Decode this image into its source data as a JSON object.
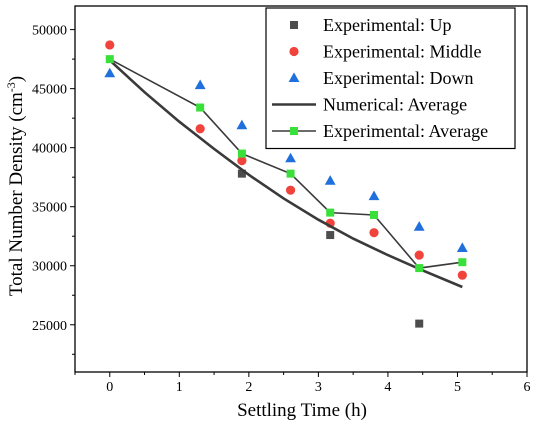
{
  "chart_data": {
    "type": "scatter",
    "xlabel": "Settling Time (h)",
    "ylabel": "Total Number Density (cm",
    "ylabel_sup": "-3",
    "ylabel_end": ")",
    "xlim": [
      -0.5,
      6
    ],
    "ylim": [
      21000,
      52000
    ],
    "xticks": [
      0,
      1,
      2,
      3,
      4,
      5,
      6
    ],
    "yticks": [
      25000,
      30000,
      35000,
      40000,
      45000,
      50000
    ],
    "legend_position": "top-right",
    "series": [
      {
        "name": "Experimental: Up",
        "kind": "scatter",
        "marker": "square",
        "color": "#4d4d4d",
        "points": [
          {
            "x": 1.9,
            "y": 37800
          },
          {
            "x": 3.17,
            "y": 32600
          },
          {
            "x": 4.45,
            "y": 25100
          }
        ]
      },
      {
        "name": "Experimental: Middle",
        "kind": "scatter",
        "marker": "circle",
        "color": "#f0433c",
        "points": [
          {
            "x": 0.0,
            "y": 48700
          },
          {
            "x": 1.3,
            "y": 41600
          },
          {
            "x": 1.9,
            "y": 38900
          },
          {
            "x": 2.6,
            "y": 36400
          },
          {
            "x": 3.17,
            "y": 33600
          },
          {
            "x": 3.8,
            "y": 32800
          },
          {
            "x": 4.45,
            "y": 30900
          },
          {
            "x": 5.07,
            "y": 29200
          }
        ]
      },
      {
        "name": "Experimental: Down",
        "kind": "scatter",
        "marker": "triangle",
        "color": "#1f6fdc",
        "points": [
          {
            "x": 0.0,
            "y": 46300
          },
          {
            "x": 1.3,
            "y": 45300
          },
          {
            "x": 1.9,
            "y": 41900
          },
          {
            "x": 2.6,
            "y": 39100
          },
          {
            "x": 3.17,
            "y": 37200
          },
          {
            "x": 3.8,
            "y": 35900
          },
          {
            "x": 4.45,
            "y": 33300
          },
          {
            "x": 5.07,
            "y": 31500
          }
        ]
      },
      {
        "name": "Numerical: Average",
        "kind": "line",
        "color": "#3a3a3a",
        "points": [
          {
            "x": 0.0,
            "y": 47400
          },
          {
            "x": 0.5,
            "y": 44700
          },
          {
            "x": 1.0,
            "y": 42200
          },
          {
            "x": 1.5,
            "y": 39900
          },
          {
            "x": 2.0,
            "y": 37700
          },
          {
            "x": 2.5,
            "y": 35700
          },
          {
            "x": 3.0,
            "y": 33900
          },
          {
            "x": 3.5,
            "y": 32300
          },
          {
            "x": 4.0,
            "y": 30900
          },
          {
            "x": 4.5,
            "y": 29600
          },
          {
            "x": 5.07,
            "y": 28200
          }
        ]
      },
      {
        "name": "Experimental: Average",
        "kind": "line-marker",
        "marker": "square",
        "color": "#39e03a",
        "line_color": "#3a3a3a",
        "points": [
          {
            "x": 0.0,
            "y": 47500
          },
          {
            "x": 1.3,
            "y": 43400
          },
          {
            "x": 1.9,
            "y": 39500
          },
          {
            "x": 2.6,
            "y": 37800
          },
          {
            "x": 3.17,
            "y": 34500
          },
          {
            "x": 3.8,
            "y": 34300
          },
          {
            "x": 4.45,
            "y": 29800
          },
          {
            "x": 5.07,
            "y": 30300
          }
        ]
      }
    ]
  }
}
